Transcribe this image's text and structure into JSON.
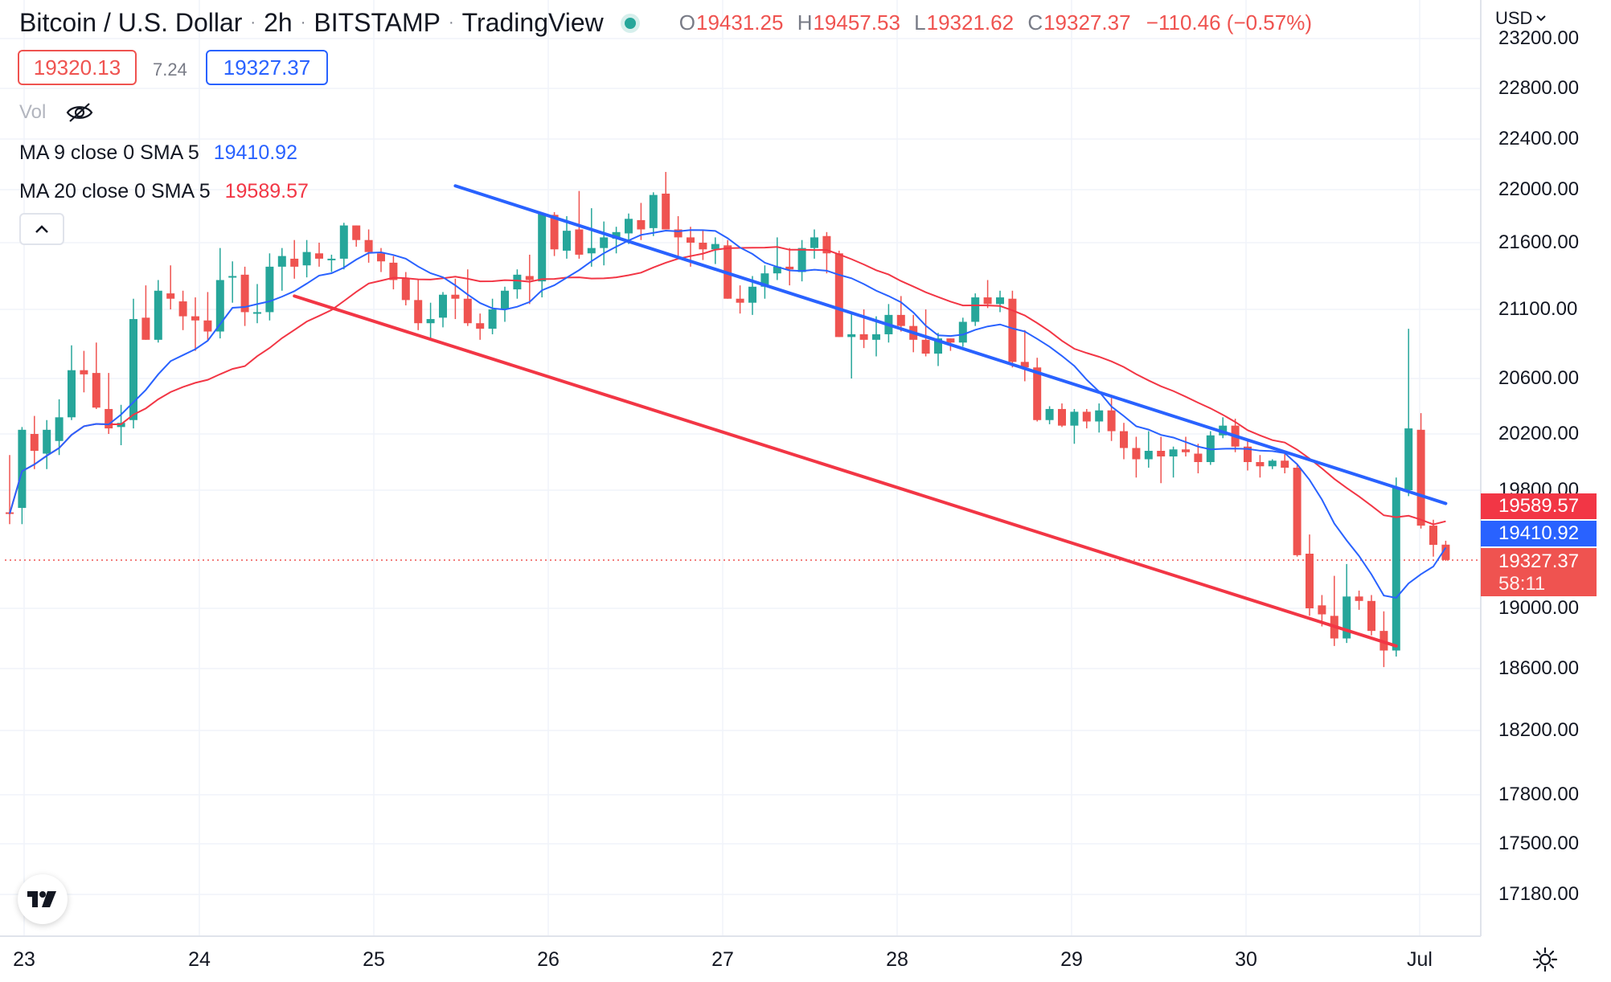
{
  "header": {
    "symbol": "Bitcoin / U.S. Dollar",
    "interval": "2h",
    "exchange": "BITSTAMP",
    "source": "TradingView",
    "ohlc": {
      "o_key": "O",
      "o_val": "19431.25",
      "h_key": "H",
      "h_val": "19457.53",
      "l_key": "L",
      "l_val": "19321.62",
      "c_key": "C",
      "c_val": "19327.37",
      "change": "−110.46 (−0.57%)"
    },
    "bid": "19320.13",
    "spread": "7.24",
    "ask": "19327.37",
    "vol_label": "Vol",
    "ma9": {
      "label": "MA 9 close 0 SMA 5",
      "value": "19410.92"
    },
    "ma20": {
      "label": "MA 20 close 0 SMA 5",
      "value": "19589.57"
    }
  },
  "price_scale": {
    "currency": "USD",
    "labels": [
      "23200.00",
      "22800.00",
      "22400.00",
      "22000.00",
      "21600.00",
      "21100.00",
      "20600.00",
      "20200.00",
      "19800.00",
      "19000.00",
      "18600.00",
      "18200.00",
      "17800.00",
      "17500.00",
      "17180.00"
    ],
    "ma20_label": "19589.57",
    "ma9_label": "19410.92",
    "last_price": "19327.37",
    "countdown": "58:11"
  },
  "time_scale": {
    "labels": [
      "23",
      "24",
      "25",
      "26",
      "27",
      "28",
      "29",
      "30",
      "Jul"
    ]
  },
  "colors": {
    "up": "#26a69a",
    "down": "#ef5350",
    "ma9": "#2962ff",
    "ma20": "#f23645",
    "trend_upper": "#2962ff",
    "trend_lower": "#f23645",
    "grid": "#f0f3fa"
  },
  "icons": {
    "visibility": "eye-off-icon",
    "collapse": "chevron-up-icon",
    "settings": "gear-icon",
    "logo": "tradingview-logo-icon",
    "dropdown": "chevron-down-icon"
  },
  "chart_data": {
    "type": "candlestick",
    "timeframe": "2h",
    "x_labels": [
      "23",
      "24",
      "25",
      "26",
      "27",
      "28",
      "29",
      "30",
      "Jul"
    ],
    "ylim": [
      17000,
      23300
    ],
    "candles": [
      {
        "o": 19650,
        "h": 20050,
        "l": 19570,
        "c": 19640
      },
      {
        "o": 19680,
        "h": 20250,
        "l": 19570,
        "c": 20230
      },
      {
        "o": 20200,
        "h": 20330,
        "l": 19950,
        "c": 20080
      },
      {
        "o": 20060,
        "h": 20300,
        "l": 19950,
        "c": 20230
      },
      {
        "o": 20150,
        "h": 20450,
        "l": 20050,
        "c": 20320
      },
      {
        "o": 20320,
        "h": 20840,
        "l": 20300,
        "c": 20660
      },
      {
        "o": 20660,
        "h": 20800,
        "l": 20500,
        "c": 20630
      },
      {
        "o": 20640,
        "h": 20860,
        "l": 20380,
        "c": 20390
      },
      {
        "o": 20380,
        "h": 20640,
        "l": 20200,
        "c": 20240
      },
      {
        "o": 20250,
        "h": 20410,
        "l": 20120,
        "c": 20280
      },
      {
        "o": 20300,
        "h": 21180,
        "l": 20240,
        "c": 21030
      },
      {
        "o": 21040,
        "h": 21280,
        "l": 20880,
        "c": 20880
      },
      {
        "o": 20880,
        "h": 21320,
        "l": 20860,
        "c": 21240
      },
      {
        "o": 21220,
        "h": 21430,
        "l": 21100,
        "c": 21180
      },
      {
        "o": 21160,
        "h": 21240,
        "l": 20950,
        "c": 21050
      },
      {
        "o": 21050,
        "h": 21190,
        "l": 20800,
        "c": 21020
      },
      {
        "o": 21020,
        "h": 21230,
        "l": 20880,
        "c": 20940
      },
      {
        "o": 20940,
        "h": 21560,
        "l": 20890,
        "c": 21320
      },
      {
        "o": 21340,
        "h": 21460,
        "l": 21150,
        "c": 21350
      },
      {
        "o": 21360,
        "h": 21420,
        "l": 20980,
        "c": 21080
      },
      {
        "o": 21080,
        "h": 21290,
        "l": 21000,
        "c": 21080
      },
      {
        "o": 21080,
        "h": 21520,
        "l": 21020,
        "c": 21420
      },
      {
        "o": 21420,
        "h": 21560,
        "l": 21240,
        "c": 21500
      },
      {
        "o": 21480,
        "h": 21620,
        "l": 21330,
        "c": 21420
      },
      {
        "o": 21430,
        "h": 21620,
        "l": 21340,
        "c": 21530
      },
      {
        "o": 21520,
        "h": 21600,
        "l": 21420,
        "c": 21480
      },
      {
        "o": 21480,
        "h": 21510,
        "l": 21380,
        "c": 21480
      },
      {
        "o": 21480,
        "h": 21750,
        "l": 21400,
        "c": 21730
      },
      {
        "o": 21730,
        "h": 21700,
        "l": 21570,
        "c": 21620
      },
      {
        "o": 21620,
        "h": 21700,
        "l": 21450,
        "c": 21530
      },
      {
        "o": 21520,
        "h": 21560,
        "l": 21380,
        "c": 21460
      },
      {
        "o": 21450,
        "h": 21500,
        "l": 21250,
        "c": 21320
      },
      {
        "o": 21330,
        "h": 21380,
        "l": 21130,
        "c": 21170
      },
      {
        "o": 21170,
        "h": 21320,
        "l": 20950,
        "c": 21000
      },
      {
        "o": 21000,
        "h": 21150,
        "l": 20880,
        "c": 21030
      },
      {
        "o": 21040,
        "h": 21230,
        "l": 20970,
        "c": 21210
      },
      {
        "o": 21210,
        "h": 21330,
        "l": 21030,
        "c": 21180
      },
      {
        "o": 21180,
        "h": 21400,
        "l": 20980,
        "c": 21000
      },
      {
        "o": 21000,
        "h": 21070,
        "l": 20880,
        "c": 20960
      },
      {
        "o": 20960,
        "h": 21180,
        "l": 20920,
        "c": 21100
      },
      {
        "o": 21100,
        "h": 21270,
        "l": 21010,
        "c": 21240
      },
      {
        "o": 21250,
        "h": 21400,
        "l": 21180,
        "c": 21360
      },
      {
        "o": 21350,
        "h": 21510,
        "l": 21140,
        "c": 21320
      },
      {
        "o": 21310,
        "h": 21760,
        "l": 21190,
        "c": 21820
      },
      {
        "o": 21810,
        "h": 21830,
        "l": 21500,
        "c": 21550
      },
      {
        "o": 21540,
        "h": 21800,
        "l": 21480,
        "c": 21690
      },
      {
        "o": 21700,
        "h": 21990,
        "l": 21480,
        "c": 21510
      },
      {
        "o": 21520,
        "h": 21860,
        "l": 21420,
        "c": 21560
      },
      {
        "o": 21560,
        "h": 21760,
        "l": 21430,
        "c": 21640
      },
      {
        "o": 21630,
        "h": 21720,
        "l": 21520,
        "c": 21680
      },
      {
        "o": 21670,
        "h": 21820,
        "l": 21590,
        "c": 21780
      },
      {
        "o": 21770,
        "h": 21900,
        "l": 21620,
        "c": 21700
      },
      {
        "o": 21710,
        "h": 21980,
        "l": 21650,
        "c": 21960
      },
      {
        "o": 21970,
        "h": 22140,
        "l": 21700,
        "c": 21700
      },
      {
        "o": 21700,
        "h": 21800,
        "l": 21500,
        "c": 21640
      },
      {
        "o": 21640,
        "h": 21720,
        "l": 21420,
        "c": 21600
      },
      {
        "o": 21600,
        "h": 21700,
        "l": 21470,
        "c": 21550
      },
      {
        "o": 21550,
        "h": 21640,
        "l": 21440,
        "c": 21590
      },
      {
        "o": 21580,
        "h": 21620,
        "l": 21180,
        "c": 21180
      },
      {
        "o": 21180,
        "h": 21280,
        "l": 21070,
        "c": 21150
      },
      {
        "o": 21150,
        "h": 21350,
        "l": 21060,
        "c": 21270
      },
      {
        "o": 21270,
        "h": 21430,
        "l": 21180,
        "c": 21370
      },
      {
        "o": 21370,
        "h": 21640,
        "l": 21320,
        "c": 21420
      },
      {
        "o": 21420,
        "h": 21560,
        "l": 21280,
        "c": 21400
      },
      {
        "o": 21380,
        "h": 21620,
        "l": 21310,
        "c": 21560
      },
      {
        "o": 21560,
        "h": 21700,
        "l": 21480,
        "c": 21640
      },
      {
        "o": 21650,
        "h": 21680,
        "l": 21370,
        "c": 21520
      },
      {
        "o": 21520,
        "h": 21540,
        "l": 20900,
        "c": 20900
      },
      {
        "o": 20900,
        "h": 21080,
        "l": 20600,
        "c": 20920
      },
      {
        "o": 20920,
        "h": 21100,
        "l": 20820,
        "c": 20880
      },
      {
        "o": 20880,
        "h": 21050,
        "l": 20760,
        "c": 20920
      },
      {
        "o": 20920,
        "h": 21140,
        "l": 20860,
        "c": 21060
      },
      {
        "o": 21060,
        "h": 21200,
        "l": 20940,
        "c": 20980
      },
      {
        "o": 20980,
        "h": 21060,
        "l": 20790,
        "c": 20880
      },
      {
        "o": 20880,
        "h": 21100,
        "l": 20760,
        "c": 20780
      },
      {
        "o": 20780,
        "h": 20930,
        "l": 20690,
        "c": 20890
      },
      {
        "o": 20890,
        "h": 20880,
        "l": 20800,
        "c": 20860
      },
      {
        "o": 20860,
        "h": 21040,
        "l": 20830,
        "c": 21010
      },
      {
        "o": 21010,
        "h": 21220,
        "l": 20980,
        "c": 21190
      },
      {
        "o": 21190,
        "h": 21320,
        "l": 21110,
        "c": 21140
      },
      {
        "o": 21140,
        "h": 21240,
        "l": 21080,
        "c": 21190
      },
      {
        "o": 21180,
        "h": 21240,
        "l": 20680,
        "c": 20720
      },
      {
        "o": 20720,
        "h": 20950,
        "l": 20580,
        "c": 20680
      },
      {
        "o": 20680,
        "h": 20750,
        "l": 20290,
        "c": 20300
      },
      {
        "o": 20300,
        "h": 20400,
        "l": 20270,
        "c": 20380
      },
      {
        "o": 20380,
        "h": 20420,
        "l": 20250,
        "c": 20260
      },
      {
        "o": 20260,
        "h": 20380,
        "l": 20130,
        "c": 20360
      },
      {
        "o": 20360,
        "h": 20380,
        "l": 20240,
        "c": 20290
      },
      {
        "o": 20290,
        "h": 20420,
        "l": 20210,
        "c": 20370
      },
      {
        "o": 20370,
        "h": 20460,
        "l": 20150,
        "c": 20220
      },
      {
        "o": 20220,
        "h": 20280,
        "l": 20020,
        "c": 20100
      },
      {
        "o": 20100,
        "h": 20180,
        "l": 19890,
        "c": 20020
      },
      {
        "o": 20020,
        "h": 20220,
        "l": 19960,
        "c": 20080
      },
      {
        "o": 20080,
        "h": 20180,
        "l": 19850,
        "c": 20040
      },
      {
        "o": 20040,
        "h": 20110,
        "l": 19890,
        "c": 20090
      },
      {
        "o": 20090,
        "h": 20180,
        "l": 20040,
        "c": 20070
      },
      {
        "o": 20060,
        "h": 20130,
        "l": 19920,
        "c": 20000
      },
      {
        "o": 20000,
        "h": 20220,
        "l": 19980,
        "c": 20190
      },
      {
        "o": 20190,
        "h": 20320,
        "l": 20170,
        "c": 20260
      },
      {
        "o": 20260,
        "h": 20310,
        "l": 20070,
        "c": 20110
      },
      {
        "o": 20110,
        "h": 20150,
        "l": 19940,
        "c": 20000
      },
      {
        "o": 20000,
        "h": 20050,
        "l": 19890,
        "c": 19970
      },
      {
        "o": 19970,
        "h": 20020,
        "l": 19950,
        "c": 20010
      },
      {
        "o": 20010,
        "h": 20080,
        "l": 19920,
        "c": 19960
      },
      {
        "o": 19960,
        "h": 19980,
        "l": 19350,
        "c": 19360
      },
      {
        "o": 19370,
        "h": 19500,
        "l": 18950,
        "c": 19000
      },
      {
        "o": 19020,
        "h": 19090,
        "l": 18880,
        "c": 18960
      },
      {
        "o": 18950,
        "h": 19220,
        "l": 18750,
        "c": 18800
      },
      {
        "o": 18800,
        "h": 19300,
        "l": 18770,
        "c": 19080
      },
      {
        "o": 19080,
        "h": 19120,
        "l": 18990,
        "c": 19050
      },
      {
        "o": 19050,
        "h": 19090,
        "l": 18820,
        "c": 18850
      },
      {
        "o": 18850,
        "h": 18980,
        "l": 18610,
        "c": 18720
      },
      {
        "o": 18720,
        "h": 19890,
        "l": 18680,
        "c": 19820
      },
      {
        "o": 19800,
        "h": 20960,
        "l": 19760,
        "c": 20240
      },
      {
        "o": 20230,
        "h": 20350,
        "l": 19540,
        "c": 19560
      },
      {
        "o": 19560,
        "h": 19600,
        "l": 19350,
        "c": 19430
      },
      {
        "o": 19431.25,
        "h": 19457.53,
        "l": 19321.62,
        "c": 19327.37
      }
    ],
    "ma9_last": 19410.92,
    "ma20_last": 19589.57,
    "trendlines": [
      {
        "name": "",
        "from": {
          "bar": 36,
          "price": 22030
        },
        "to": {
          "bar": 116,
          "price": 19710
        }
      },
      {
        "name": "",
        "from": {
          "bar": 23,
          "price": 21200
        },
        "to": {
          "bar": 112,
          "price": 18750
        }
      }
    ]
  }
}
